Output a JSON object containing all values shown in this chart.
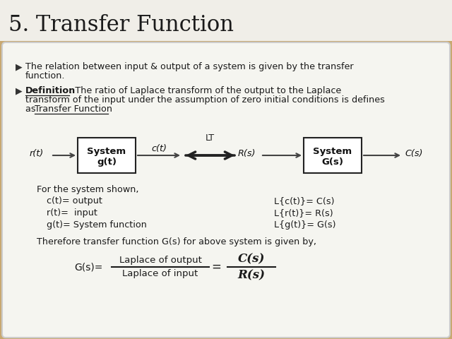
{
  "title": "5. Transfer Function",
  "bg_color": "#C8A870",
  "panel_color": "#F5F5F0",
  "title_bg": "#F0EEE8",
  "bullet1_line1": "The relation between input & output of a system is given by the transfer",
  "bullet1_line2": "function.",
  "def_label": "Definition",
  "def_rest_line1": ": The ratio of Laplace transform of the output to the Laplace",
  "def_line2": "transform of the input under the assumption of zero initial conditions is defines",
  "def_line3_pre": "as ",
  "def_line3_link": "Transfer Function",
  "for_system": "For the system shown,",
  "left_col": [
    "c(t)= output",
    "r(t)=  input",
    "g(t)= System function"
  ],
  "right_col": [
    "L{c(t)}= C(s)",
    "L{r(t)}= R(s)",
    "L{g(t)}= G(s)"
  ],
  "therefore": "Therefore transfer function G(s) for above system is given by,",
  "formula_left": "G(s)=",
  "formula_num": "Laplace of output",
  "formula_den": "Laplace of input",
  "formula_eq": "=",
  "formula_right_num": "C(s)",
  "formula_right_den": "R(s)",
  "box_left_line1": "System",
  "box_left_line2": "g(t)",
  "box_right_line1": "System",
  "box_right_line2": "G(s)",
  "label_rt": "r(t)",
  "label_ct": "c(t)",
  "label_LT": "LT",
  "label_Rs": "R(s)",
  "label_Cs": "C(s)"
}
